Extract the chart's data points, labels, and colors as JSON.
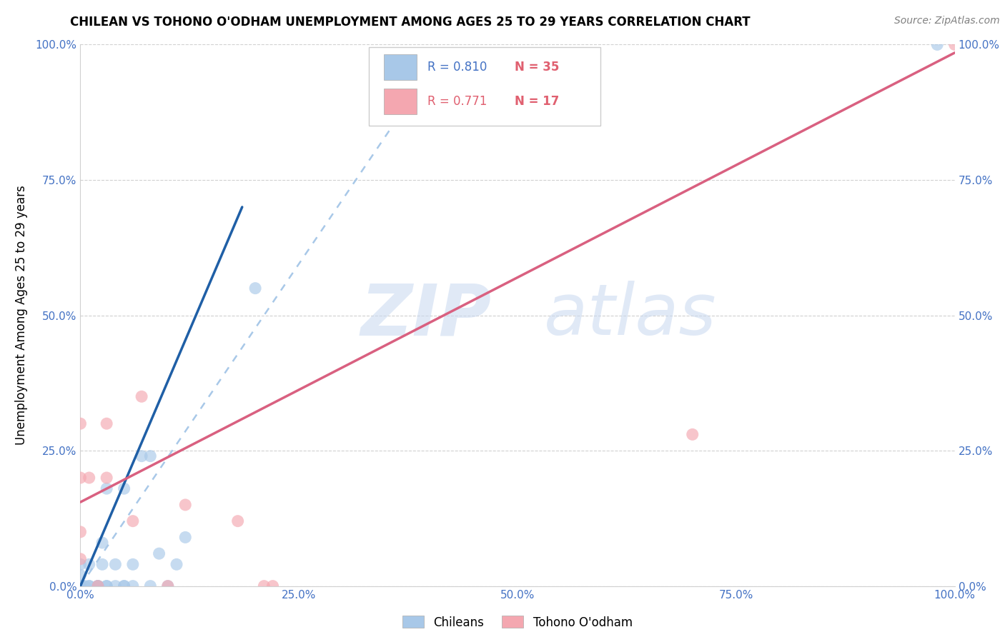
{
  "title": "CHILEAN VS TOHONO O'ODHAM UNEMPLOYMENT AMONG AGES 25 TO 29 YEARS CORRELATION CHART",
  "source": "Source: ZipAtlas.com",
  "ylabel": "Unemployment Among Ages 25 to 29 years",
  "xlim": [
    0,
    1.0
  ],
  "ylim": [
    0,
    1.0
  ],
  "xticks": [
    0.0,
    0.25,
    0.5,
    0.75,
    1.0
  ],
  "yticks": [
    0.0,
    0.25,
    0.5,
    0.75,
    1.0
  ],
  "xticklabels": [
    "0.0%",
    "25.0%",
    "50.0%",
    "75.0%",
    "100.0%"
  ],
  "yticklabels": [
    "0.0%",
    "25.0%",
    "50.0%",
    "75.0%",
    "100.0%"
  ],
  "chilean_R": "0.810",
  "chilean_N": "35",
  "tohono_R": "0.771",
  "tohono_N": "17",
  "chilean_color": "#a8c8e8",
  "tohono_color": "#f4a7b0",
  "chilean_line_color": "#1f5fa6",
  "tohono_line_color": "#d96080",
  "dashed_line_color": "#a8c8e8",
  "watermark_zip": "ZIP",
  "watermark_atlas": "atlas",
  "legend_label_chilean": "Chileans",
  "legend_label_tohono": "Tohono O'odham",
  "chilean_x": [
    0.0,
    0.0,
    0.0,
    0.0,
    0.0,
    0.0,
    0.0,
    0.005,
    0.01,
    0.01,
    0.01,
    0.02,
    0.02,
    0.02,
    0.025,
    0.025,
    0.03,
    0.03,
    0.03,
    0.04,
    0.04,
    0.05,
    0.05,
    0.05,
    0.06,
    0.06,
    0.07,
    0.08,
    0.08,
    0.09,
    0.1,
    0.11,
    0.12,
    0.2,
    0.98
  ],
  "chilean_y": [
    0.0,
    0.0,
    0.0,
    0.0,
    0.0,
    0.02,
    0.04,
    0.0,
    0.0,
    0.0,
    0.04,
    0.0,
    0.0,
    0.0,
    0.04,
    0.08,
    0.0,
    0.0,
    0.18,
    0.0,
    0.04,
    0.0,
    0.0,
    0.18,
    0.0,
    0.04,
    0.24,
    0.0,
    0.24,
    0.06,
    0.0,
    0.04,
    0.09,
    0.55,
    1.0
  ],
  "tohono_x": [
    0.0,
    0.0,
    0.0,
    0.0,
    0.01,
    0.02,
    0.03,
    0.03,
    0.06,
    0.07,
    0.1,
    0.12,
    0.18,
    0.21,
    0.22,
    0.7,
    1.0
  ],
  "tohono_y": [
    0.05,
    0.1,
    0.2,
    0.3,
    0.2,
    0.0,
    0.2,
    0.3,
    0.12,
    0.35,
    0.0,
    0.15,
    0.12,
    0.0,
    0.0,
    0.28,
    1.0
  ],
  "chilean_line_x": [
    0.0,
    0.185
  ],
  "chilean_line_y": [
    0.0,
    0.7
  ],
  "dashed_line_x": [
    0.0,
    0.42
  ],
  "dashed_line_y": [
    0.0,
    1.0
  ],
  "tohono_line_x": [
    0.0,
    1.0
  ],
  "tohono_line_y": [
    0.155,
    0.985
  ],
  "tick_color": "#4472c4",
  "grid_color": "#d0d0d0",
  "title_fontsize": 12,
  "source_fontsize": 10,
  "tick_fontsize": 11,
  "ylabel_fontsize": 12
}
